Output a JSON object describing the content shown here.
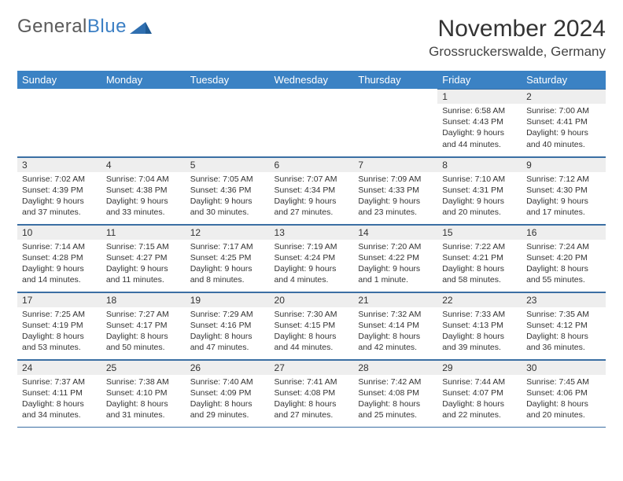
{
  "logo": {
    "text1": "General",
    "text2": "Blue"
  },
  "title": "November 2024",
  "location": "Grossruckerswalde, Germany",
  "colors": {
    "header_bg": "#3b82c4",
    "header_text": "#ffffff",
    "daynum_bg": "#eeeeee",
    "border": "#3b6fa3",
    "logo_gray": "#5a5a5a",
    "logo_blue": "#3b7fc4"
  },
  "day_names": [
    "Sunday",
    "Monday",
    "Tuesday",
    "Wednesday",
    "Thursday",
    "Friday",
    "Saturday"
  ],
  "weeks": [
    [
      null,
      null,
      null,
      null,
      null,
      {
        "n": "1",
        "sr": "6:58 AM",
        "ss": "4:43 PM",
        "dl": "9 hours and 44 minutes."
      },
      {
        "n": "2",
        "sr": "7:00 AM",
        "ss": "4:41 PM",
        "dl": "9 hours and 40 minutes."
      }
    ],
    [
      {
        "n": "3",
        "sr": "7:02 AM",
        "ss": "4:39 PM",
        "dl": "9 hours and 37 minutes."
      },
      {
        "n": "4",
        "sr": "7:04 AM",
        "ss": "4:38 PM",
        "dl": "9 hours and 33 minutes."
      },
      {
        "n": "5",
        "sr": "7:05 AM",
        "ss": "4:36 PM",
        "dl": "9 hours and 30 minutes."
      },
      {
        "n": "6",
        "sr": "7:07 AM",
        "ss": "4:34 PM",
        "dl": "9 hours and 27 minutes."
      },
      {
        "n": "7",
        "sr": "7:09 AM",
        "ss": "4:33 PM",
        "dl": "9 hours and 23 minutes."
      },
      {
        "n": "8",
        "sr": "7:10 AM",
        "ss": "4:31 PM",
        "dl": "9 hours and 20 minutes."
      },
      {
        "n": "9",
        "sr": "7:12 AM",
        "ss": "4:30 PM",
        "dl": "9 hours and 17 minutes."
      }
    ],
    [
      {
        "n": "10",
        "sr": "7:14 AM",
        "ss": "4:28 PM",
        "dl": "9 hours and 14 minutes."
      },
      {
        "n": "11",
        "sr": "7:15 AM",
        "ss": "4:27 PM",
        "dl": "9 hours and 11 minutes."
      },
      {
        "n": "12",
        "sr": "7:17 AM",
        "ss": "4:25 PM",
        "dl": "9 hours and 8 minutes."
      },
      {
        "n": "13",
        "sr": "7:19 AM",
        "ss": "4:24 PM",
        "dl": "9 hours and 4 minutes."
      },
      {
        "n": "14",
        "sr": "7:20 AM",
        "ss": "4:22 PM",
        "dl": "9 hours and 1 minute."
      },
      {
        "n": "15",
        "sr": "7:22 AM",
        "ss": "4:21 PM",
        "dl": "8 hours and 58 minutes."
      },
      {
        "n": "16",
        "sr": "7:24 AM",
        "ss": "4:20 PM",
        "dl": "8 hours and 55 minutes."
      }
    ],
    [
      {
        "n": "17",
        "sr": "7:25 AM",
        "ss": "4:19 PM",
        "dl": "8 hours and 53 minutes."
      },
      {
        "n": "18",
        "sr": "7:27 AM",
        "ss": "4:17 PM",
        "dl": "8 hours and 50 minutes."
      },
      {
        "n": "19",
        "sr": "7:29 AM",
        "ss": "4:16 PM",
        "dl": "8 hours and 47 minutes."
      },
      {
        "n": "20",
        "sr": "7:30 AM",
        "ss": "4:15 PM",
        "dl": "8 hours and 44 minutes."
      },
      {
        "n": "21",
        "sr": "7:32 AM",
        "ss": "4:14 PM",
        "dl": "8 hours and 42 minutes."
      },
      {
        "n": "22",
        "sr": "7:33 AM",
        "ss": "4:13 PM",
        "dl": "8 hours and 39 minutes."
      },
      {
        "n": "23",
        "sr": "7:35 AM",
        "ss": "4:12 PM",
        "dl": "8 hours and 36 minutes."
      }
    ],
    [
      {
        "n": "24",
        "sr": "7:37 AM",
        "ss": "4:11 PM",
        "dl": "8 hours and 34 minutes."
      },
      {
        "n": "25",
        "sr": "7:38 AM",
        "ss": "4:10 PM",
        "dl": "8 hours and 31 minutes."
      },
      {
        "n": "26",
        "sr": "7:40 AM",
        "ss": "4:09 PM",
        "dl": "8 hours and 29 minutes."
      },
      {
        "n": "27",
        "sr": "7:41 AM",
        "ss": "4:08 PM",
        "dl": "8 hours and 27 minutes."
      },
      {
        "n": "28",
        "sr": "7:42 AM",
        "ss": "4:08 PM",
        "dl": "8 hours and 25 minutes."
      },
      {
        "n": "29",
        "sr": "7:44 AM",
        "ss": "4:07 PM",
        "dl": "8 hours and 22 minutes."
      },
      {
        "n": "30",
        "sr": "7:45 AM",
        "ss": "4:06 PM",
        "dl": "8 hours and 20 minutes."
      }
    ]
  ],
  "labels": {
    "sunrise": "Sunrise: ",
    "sunset": "Sunset: ",
    "daylight": "Daylight: "
  }
}
